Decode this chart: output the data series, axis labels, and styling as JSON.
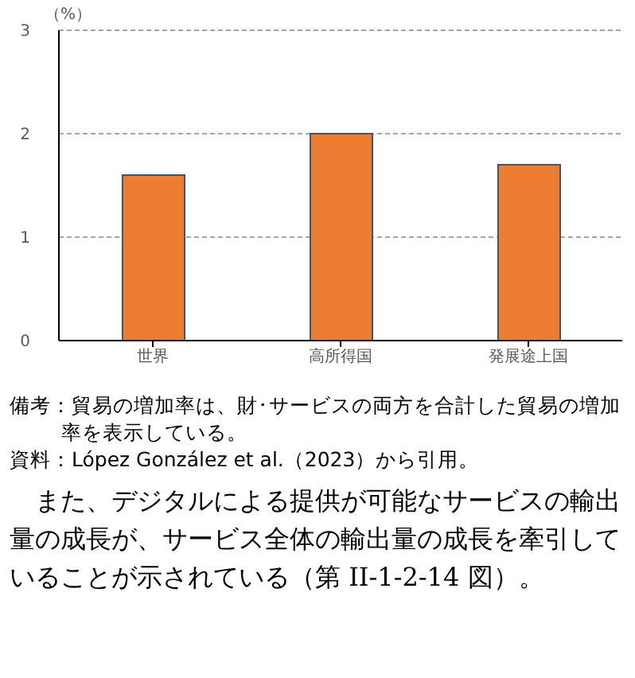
{
  "chart_data": {
    "type": "bar",
    "ylabel": "（%）",
    "categories": [
      "世界",
      "高所得国",
      "発展途上国"
    ],
    "values": [
      1.6,
      2.0,
      1.7
    ],
    "color": "#ed7d31",
    "ylim": [
      0,
      3
    ],
    "yticks": [
      0,
      1,
      2,
      3
    ],
    "grid": "y",
    "annotations": [
      "備考：貿易の増加率は、財･サービスの両方を合計した貿易の増加率を表示している。",
      "資料：López González et al.（2023）から引用。",
      "　また、デジタルによる提供が可能なサービスの輸出量の成長が、サービス全体の輸出量の成長を牽引していることが示されている（第 II-1-2-14 図）。"
    ]
  }
}
